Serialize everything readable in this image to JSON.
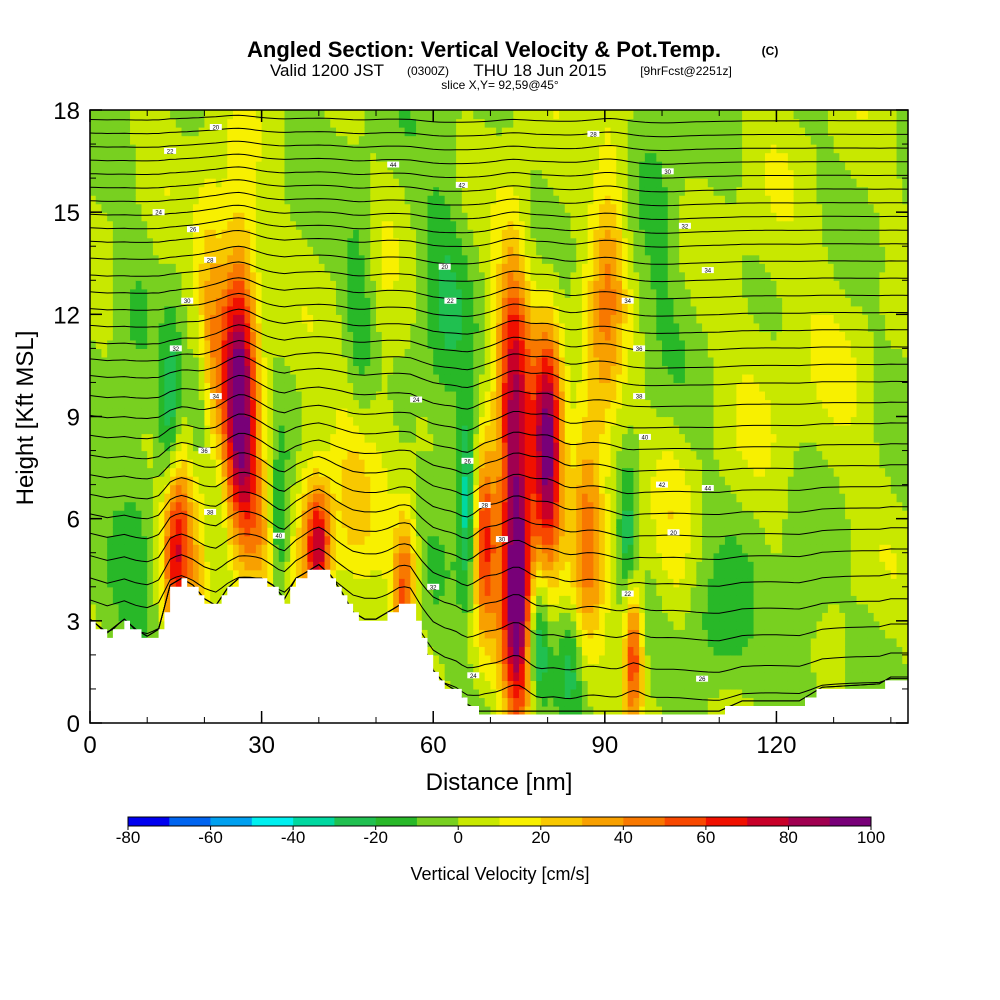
{
  "title": {
    "main": "Angled Section: Vertical Velocity & Pot.Temp.",
    "main_unit": "(C)",
    "valid_prefix": "Valid 1200 JST",
    "valid_utc": "(0300Z)",
    "valid_date": "THU 18 Jun 2015",
    "forecast": "[9hrFcst@2251z]",
    "slice": "slice X,Y= 92,59@45°"
  },
  "chart_data": {
    "type": "heatmap",
    "xlabel": "Distance [nm]",
    "ylabel": "Height [Kft MSL]",
    "xlim": [
      0,
      143
    ],
    "ylim": [
      0,
      18
    ],
    "xticks": [
      0,
      30,
      60,
      90,
      120
    ],
    "xticks_minor_step": 10,
    "yticks": [
      0,
      3,
      6,
      9,
      12,
      15,
      18
    ],
    "yticks_minor_step": 1,
    "colorbar": {
      "title": "Vertical Velocity [cm/s]",
      "levels": [
        -80,
        -70,
        -60,
        -50,
        -40,
        -30,
        -20,
        -10,
        0,
        10,
        20,
        30,
        40,
        50,
        60,
        70,
        80,
        90,
        100
      ],
      "labels": [
        "-80",
        "-60",
        "-40",
        "-20",
        "0",
        "20",
        "40",
        "60",
        "80",
        "100"
      ],
      "colors": [
        "#0000f0",
        "#0064f0",
        "#00a0f0",
        "#00f0f0",
        "#00d8a0",
        "#20c050",
        "#28b828",
        "#78d020",
        "#c8e800",
        "#f8f000",
        "#f8c800",
        "#f8a000",
        "#f87800",
        "#f84800",
        "#f01000",
        "#c80028",
        "#a00050",
        "#780078"
      ]
    },
    "background_value": 0,
    "terrain": [
      [
        0,
        3.0
      ],
      [
        3,
        2.6
      ],
      [
        6,
        3.0
      ],
      [
        8,
        2.7
      ],
      [
        10,
        2.5
      ],
      [
        12,
        2.7
      ],
      [
        14,
        4.0
      ],
      [
        16,
        4.2
      ],
      [
        18,
        4.0
      ],
      [
        20,
        3.6
      ],
      [
        22,
        3.4
      ],
      [
        24,
        3.9
      ],
      [
        26,
        4.2
      ],
      [
        28,
        4.2
      ],
      [
        30,
        4.2
      ],
      [
        32,
        4.0
      ],
      [
        34,
        3.6
      ],
      [
        36,
        4.2
      ],
      [
        38,
        4.4
      ],
      [
        40,
        4.6
      ],
      [
        42,
        4.3
      ],
      [
        44,
        3.8
      ],
      [
        46,
        3.2
      ],
      [
        48,
        3.0
      ],
      [
        50,
        3.0
      ],
      [
        52,
        3.2
      ],
      [
        54,
        3.4
      ],
      [
        56,
        3.4
      ],
      [
        58,
        2.4
      ],
      [
        60,
        1.5
      ],
      [
        62,
        1.1
      ],
      [
        64,
        0.9
      ],
      [
        66,
        0.5
      ],
      [
        68,
        0.3
      ],
      [
        70,
        0.3
      ],
      [
        80,
        0.3
      ],
      [
        100,
        0.3
      ],
      [
        110,
        0.3
      ],
      [
        114,
        0.6
      ],
      [
        124,
        0.6
      ],
      [
        128,
        1.0
      ],
      [
        138,
        1.1
      ],
      [
        140,
        1.3
      ],
      [
        143,
        1.3
      ]
    ],
    "cells": [
      {
        "x": 15,
        "y": 5.5,
        "sx": 1.8,
        "sy": 2.0,
        "v": 85
      },
      {
        "x": 14,
        "y": 8.5,
        "sx": 1.6,
        "sy": 2.5,
        "v": -45
      },
      {
        "x": 13,
        "y": 11.0,
        "sx": 2.0,
        "sy": 2.0,
        "v": 15
      },
      {
        "x": 19,
        "y": 6.0,
        "sx": 1.4,
        "sy": 2.0,
        "v": 30
      },
      {
        "x": 19,
        "y": 9.0,
        "sx": 1.2,
        "sy": 2.0,
        "v": -25
      },
      {
        "x": 21,
        "y": 12.5,
        "sx": 2.0,
        "sy": 2.5,
        "v": 30
      },
      {
        "x": 26,
        "y": 10.5,
        "sx": 2.2,
        "sy": 3.0,
        "v": 80
      },
      {
        "x": 27,
        "y": 7.5,
        "sx": 2.0,
        "sy": 2.0,
        "v": 40
      },
      {
        "x": 30,
        "y": 5.5,
        "sx": 1.8,
        "sy": 1.6,
        "v": 20
      },
      {
        "x": 33,
        "y": 5.5,
        "sx": 1.2,
        "sy": 1.5,
        "v": -30
      },
      {
        "x": 40,
        "y": 5.2,
        "sx": 1.6,
        "sy": 1.2,
        "v": 70
      },
      {
        "x": 38,
        "y": 6.0,
        "sx": 2.0,
        "sy": 2.0,
        "v": 20
      },
      {
        "x": 46,
        "y": 7.5,
        "sx": 2.5,
        "sy": 3.0,
        "v": 20
      },
      {
        "x": 47,
        "y": 12.0,
        "sx": 2.0,
        "sy": 2.5,
        "v": -20
      },
      {
        "x": 55,
        "y": 4.0,
        "sx": 1.5,
        "sy": 1.6,
        "v": 55
      },
      {
        "x": 51,
        "y": 9.5,
        "sx": 2.0,
        "sy": 3.0,
        "v": 10
      },
      {
        "x": 66,
        "y": 6.5,
        "sx": 1.2,
        "sy": 2.0,
        "v": -40
      },
      {
        "x": 69,
        "y": 5.5,
        "sx": 1.5,
        "sy": 2.0,
        "v": 60
      },
      {
        "x": 75,
        "y": 3.5,
        "sx": 2.0,
        "sy": 2.8,
        "v": 90
      },
      {
        "x": 74,
        "y": 8.0,
        "sx": 2.0,
        "sy": 3.0,
        "v": 60
      },
      {
        "x": 74,
        "y": 12.0,
        "sx": 2.2,
        "sy": 2.5,
        "v": 30
      },
      {
        "x": 80,
        "y": 8.0,
        "sx": 1.8,
        "sy": 2.5,
        "v": 95
      },
      {
        "x": 78,
        "y": 2.5,
        "sx": 1.5,
        "sy": 1.5,
        "v": -50
      },
      {
        "x": 84,
        "y": 1.8,
        "sx": 1.5,
        "sy": 1.2,
        "v": -20
      },
      {
        "x": 87,
        "y": 6.0,
        "sx": 2.0,
        "sy": 3.0,
        "v": 40
      },
      {
        "x": 91,
        "y": 14.5,
        "sx": 2.2,
        "sy": 3.0,
        "v": 25
      },
      {
        "x": 90,
        "y": 10.5,
        "sx": 2.0,
        "sy": 2.5,
        "v": 20
      },
      {
        "x": 95,
        "y": 2.0,
        "sx": 1.2,
        "sy": 1.5,
        "v": 60
      },
      {
        "x": 94,
        "y": 5.5,
        "sx": 1.2,
        "sy": 1.5,
        "v": -25
      },
      {
        "x": 102,
        "y": 5.0,
        "sx": 2.5,
        "sy": 2.5,
        "v": 12
      },
      {
        "x": 118,
        "y": 11.5,
        "sx": 5.0,
        "sy": 3.0,
        "v": 8
      },
      {
        "x": 130,
        "y": 9.0,
        "sx": 5.0,
        "sy": 4.0,
        "v": 6
      },
      {
        "x": 110,
        "y": 2.5,
        "sx": 4.0,
        "sy": 1.5,
        "v": -18
      },
      {
        "x": 125,
        "y": 3.5,
        "sx": 3.0,
        "sy": 2.0,
        "v": -14
      },
      {
        "x": 8,
        "y": 7.0,
        "sx": 3.0,
        "sy": 4.0,
        "v": -12
      },
      {
        "x": 62,
        "y": 12.0,
        "sx": 3.0,
        "sy": 4.0,
        "v": -16
      },
      {
        "x": 100,
        "y": 15.0,
        "sx": 3.0,
        "sy": 3.0,
        "v": -12
      }
    ],
    "isentropes": {
      "base_heights": [
        0.4,
        1.0,
        1.7,
        2.4,
        3.2,
        3.9,
        4.6,
        5.3,
        5.9,
        6.5,
        7.1,
        7.7,
        8.3,
        8.9,
        9.5,
        10.1,
        10.6,
        11.1,
        11.6,
        12.1,
        12.6,
        13.1,
        13.6,
        14.1,
        14.5,
        14.9,
        15.3,
        15.7,
        16.1,
        16.5,
        16.9,
        17.3,
        17.7
      ],
      "label_values": [
        "20",
        "22",
        "24",
        "26",
        "28",
        "30",
        "32",
        "34",
        "36",
        "38",
        "40",
        "42",
        "44"
      ]
    }
  }
}
